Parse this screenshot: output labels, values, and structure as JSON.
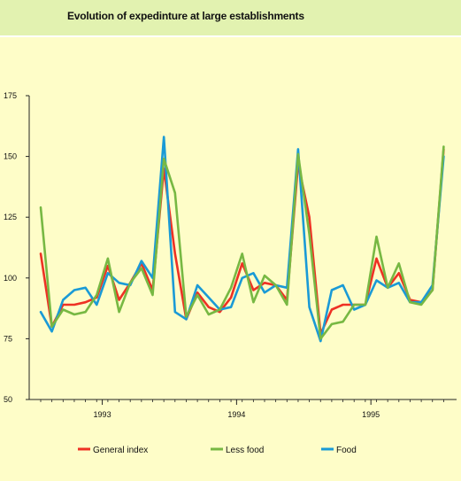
{
  "title": "Evolution of expedinture at large establishments",
  "chart_data": {
    "type": "line",
    "title": "Evolution of expedinture at large establishments",
    "xlabel": "",
    "ylabel": "",
    "ylim": [
      50,
      175
    ],
    "yticks": [
      50,
      75,
      100,
      125,
      150,
      175
    ],
    "xticks": [
      {
        "label": "1993",
        "pos": 6
      },
      {
        "label": "1994",
        "pos": 18
      },
      {
        "label": "1995",
        "pos": 30
      }
    ],
    "x": [
      1,
      2,
      3,
      4,
      5,
      6,
      7,
      8,
      9,
      10,
      11,
      12,
      13,
      14,
      15,
      16,
      17,
      18,
      19,
      20,
      21,
      22,
      23,
      24,
      25,
      26,
      27,
      28,
      29,
      30,
      31,
      32,
      33,
      34,
      35,
      36,
      37
    ],
    "grid": false,
    "legend_position": "bottom",
    "series": [
      {
        "name": "General index",
        "color": "#ee3124",
        "values": [
          110,
          80,
          89,
          89,
          90,
          92,
          105,
          91,
          98,
          106,
          95,
          145,
          110,
          83,
          94,
          88,
          86,
          92,
          106,
          95,
          98,
          97,
          91,
          147,
          125,
          77,
          87,
          89,
          89,
          89,
          108,
          96,
          102,
          91,
          90,
          95,
          153
        ]
      },
      {
        "name": "Less food",
        "color": "#77b843",
        "values": [
          129,
          80,
          87,
          85,
          86,
          93,
          108,
          86,
          98,
          104,
          93,
          149,
          135,
          84,
          93,
          85,
          87,
          96,
          110,
          90,
          101,
          97,
          89,
          151,
          118,
          75,
          81,
          82,
          89,
          89,
          117,
          96,
          106,
          90,
          89,
          95,
          154
        ]
      },
      {
        "name": "Food",
        "color": "#1a9ad6",
        "values": [
          86,
          78,
          91,
          95,
          96,
          89,
          102,
          98,
          97,
          107,
          100,
          158,
          86,
          83,
          97,
          92,
          87,
          88,
          100,
          102,
          94,
          97,
          96,
          153,
          88,
          74,
          95,
          97,
          87,
          89,
          99,
          96,
          98,
          90,
          90,
          97,
          150
        ]
      }
    ]
  }
}
